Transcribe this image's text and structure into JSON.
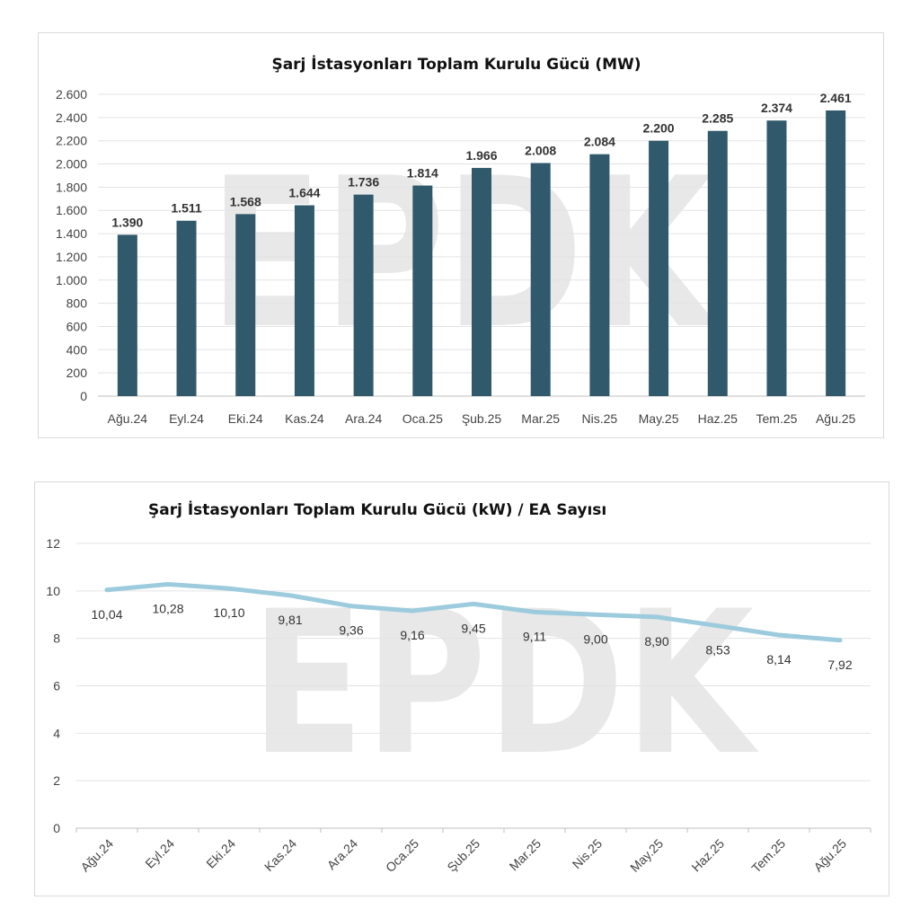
{
  "chart_data": [
    {
      "type": "bar",
      "title": "Şarj İstasyonları Toplam Kurulu Gücü (MW)",
      "categories": [
        "Ağu.24",
        "Eyl.24",
        "Eki.24",
        "Kas.24",
        "Ara.24",
        "Oca.25",
        "Şub.25",
        "Mar.25",
        "Nis.25",
        "May.25",
        "Haz.25",
        "Tem.25",
        "Ağu.25"
      ],
      "values": [
        1390,
        1511,
        1568,
        1644,
        1736,
        1814,
        1966,
        2008,
        2084,
        2200,
        2285,
        2374,
        2461
      ],
      "value_labels": [
        "1.390",
        "1.511",
        "1.568",
        "1.644",
        "1.736",
        "1.814",
        "1.966",
        "2.008",
        "2.084",
        "2.200",
        "2.285",
        "2.374",
        "2.461"
      ],
      "ylim": [
        0,
        2600
      ],
      "y_ticks": [
        0,
        200,
        400,
        600,
        800,
        1000,
        1200,
        1400,
        1600,
        1800,
        2000,
        2200,
        2400,
        2600
      ],
      "y_tick_labels": [
        "0",
        "200",
        "400",
        "600",
        "800",
        "1.000",
        "1.200",
        "1.400",
        "1.600",
        "1.800",
        "2.000",
        "2.200",
        "2.400",
        "2.600"
      ],
      "grid": true,
      "color": "#305a6b",
      "legend": "none"
    },
    {
      "type": "line",
      "title": "Şarj İstasyonları Toplam Kurulu Gücü (kW) / EA Sayısı",
      "categories": [
        "Ağu.24",
        "Eyl.24",
        "Eki.24",
        "Kas.24",
        "Ara.24",
        "Oca.25",
        "Şub.25",
        "Mar.25",
        "Nis.25",
        "May.25",
        "Haz.25",
        "Tem.25",
        "Ağu.25"
      ],
      "values": [
        10.04,
        10.28,
        10.1,
        9.81,
        9.36,
        9.16,
        9.45,
        9.11,
        9.0,
        8.9,
        8.53,
        8.14,
        7.92
      ],
      "value_labels": [
        "10,04",
        "10,28",
        "10,10",
        "9,81",
        "9,36",
        "9,16",
        "9,45",
        "9,11",
        "9,00",
        "8,90",
        "8,53",
        "8,14",
        "7,92"
      ],
      "ylim": [
        0,
        12
      ],
      "y_ticks": [
        0,
        2,
        4,
        6,
        8,
        10,
        12
      ],
      "y_tick_labels": [
        "0",
        "2",
        "4",
        "6",
        "8",
        "10",
        "12"
      ],
      "grid": true,
      "color": "#9ccbdd",
      "legend": "none"
    }
  ],
  "watermark": "EPDK"
}
